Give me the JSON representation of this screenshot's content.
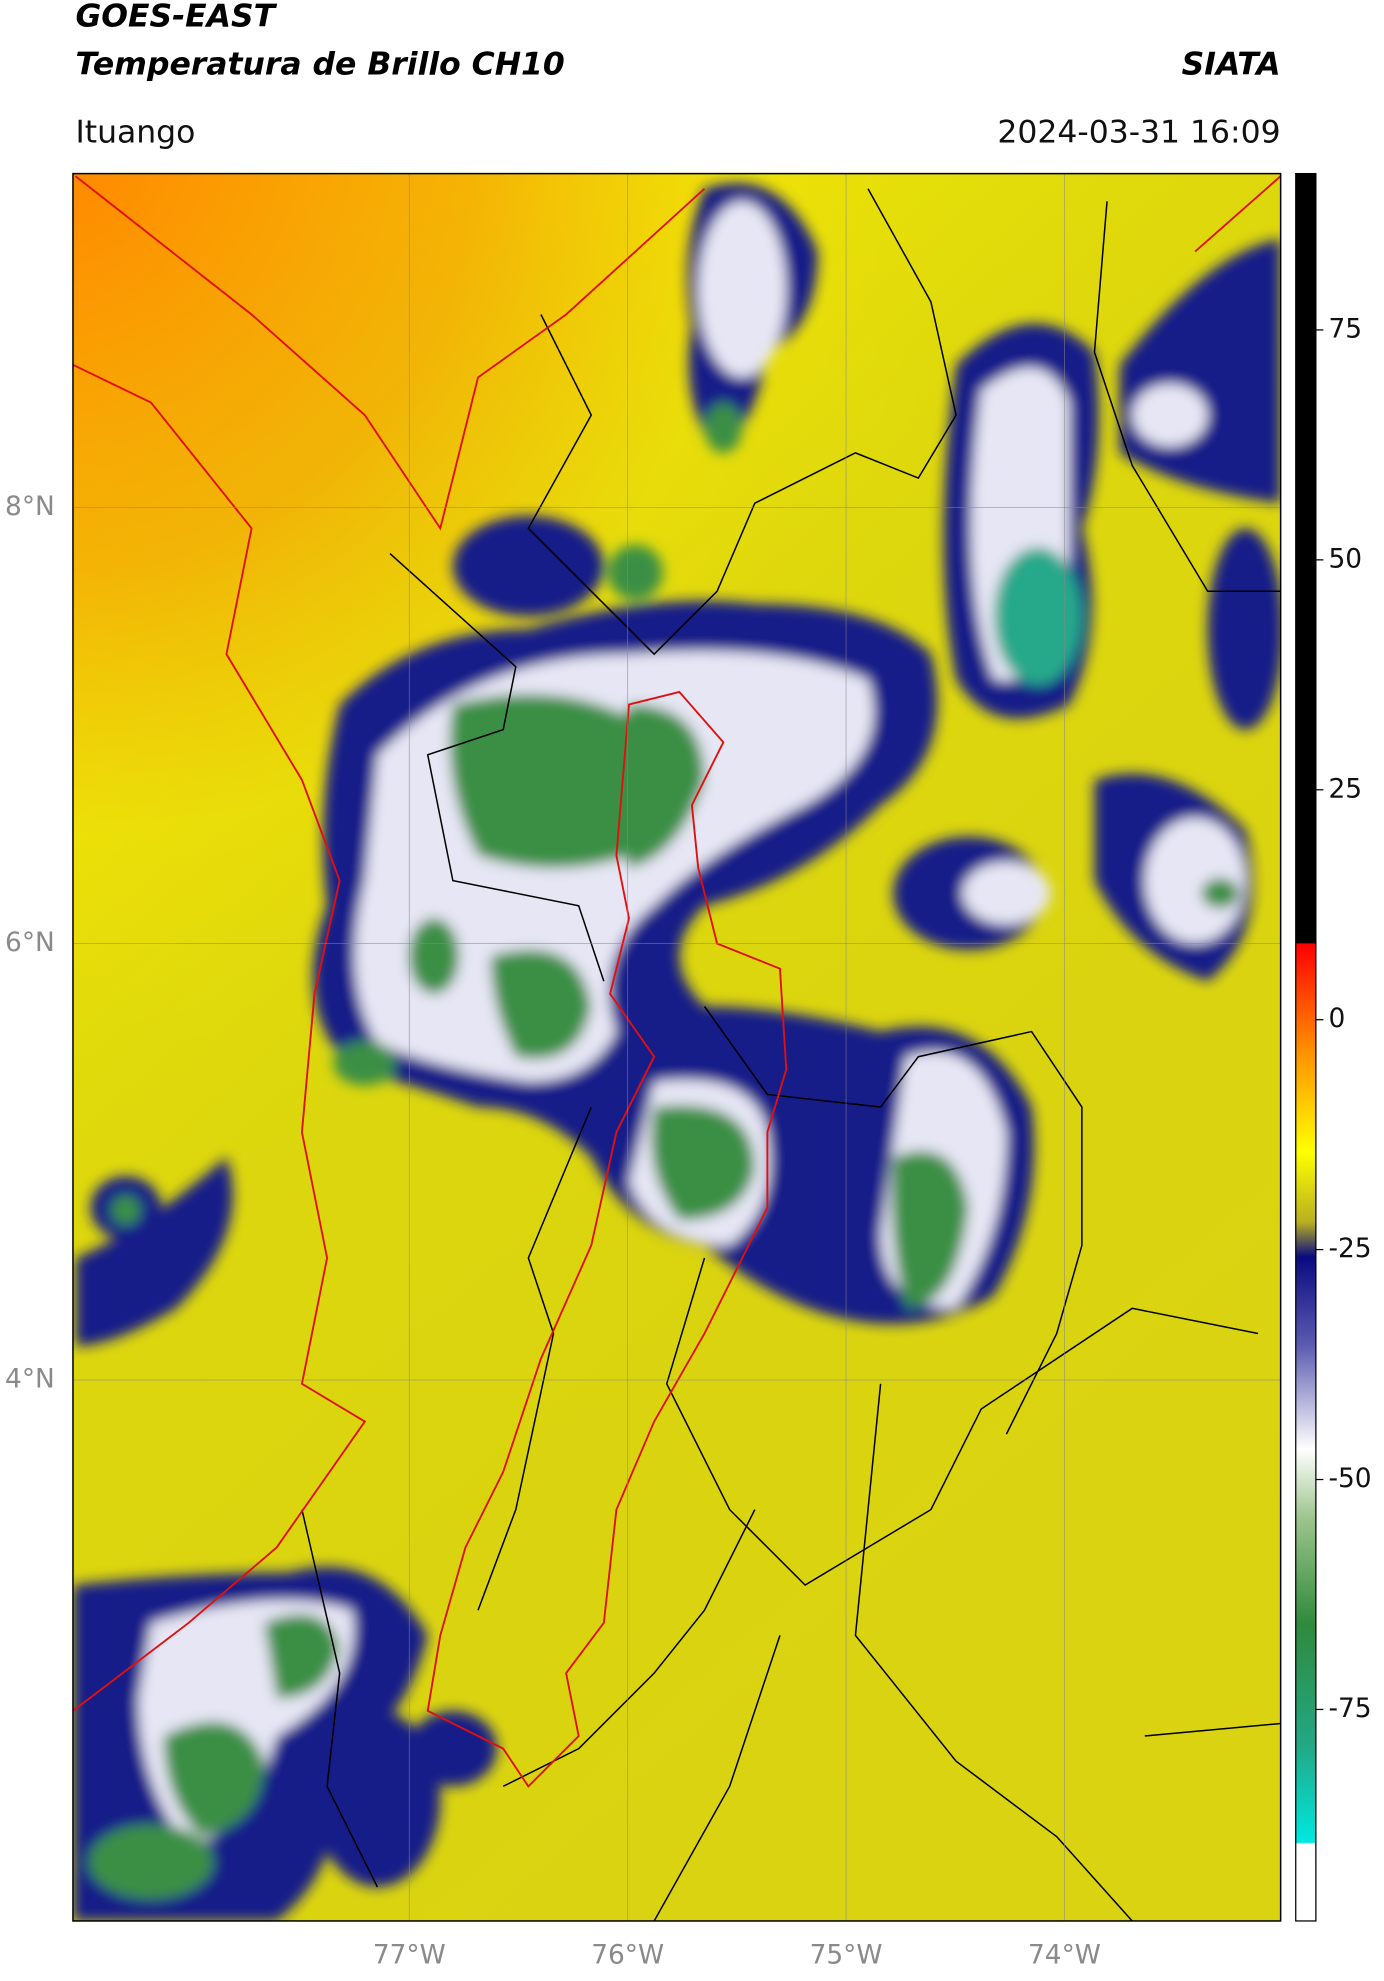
{
  "header": {
    "title": "GOES-EAST",
    "subtitle": "Temperatura de Brillo CH10",
    "brand": "SIATA",
    "location": "Ituango",
    "datetime": "2024-03-31 16:09"
  },
  "map": {
    "xlim": [
      -78.54,
      -73.01
    ],
    "ylim": [
      1.52,
      9.53
    ],
    "xticks": [
      {
        "value": -77,
        "label": "77°W"
      },
      {
        "value": -76,
        "label": "76°W"
      },
      {
        "value": -75,
        "label": "75°W"
      },
      {
        "value": -74,
        "label": "74°W"
      }
    ],
    "yticks": [
      {
        "value": 4,
        "label": "4°N"
      },
      {
        "value": 6,
        "label": "6°N"
      },
      {
        "value": 8,
        "label": "8°N"
      }
    ],
    "grid": true
  },
  "colorbar": {
    "lim": [
      -98,
      92
    ],
    "ticks": [
      -75,
      -50,
      -25,
      0,
      25,
      50,
      75
    ]
  }
}
